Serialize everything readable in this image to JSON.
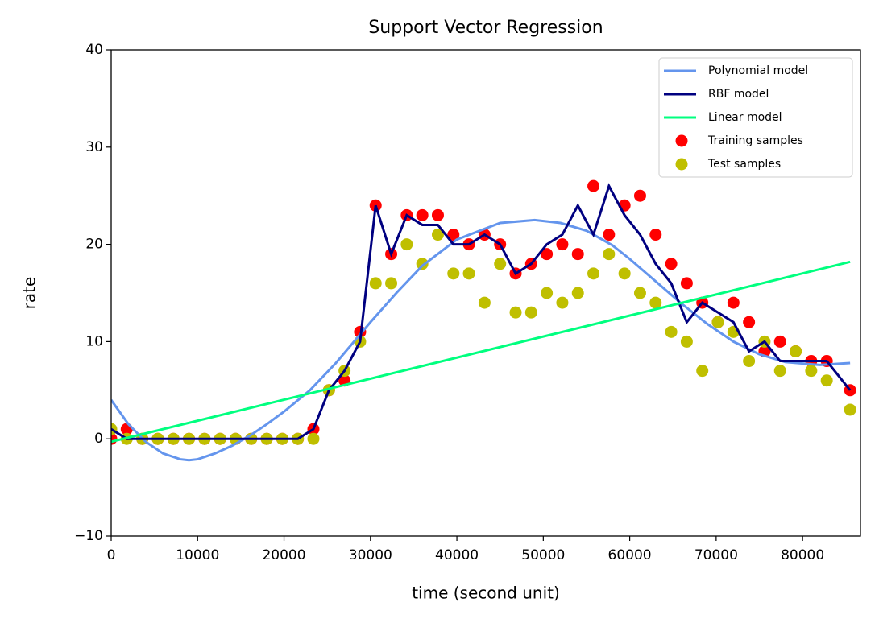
{
  "chart_data": {
    "type": "line",
    "title": "Support Vector Regression",
    "x_label": "time (second unit)",
    "y_label": "rate",
    "xlim": [
      0,
      86700
    ],
    "ylim": [
      -10,
      40
    ],
    "xticks": [
      0,
      10000,
      20000,
      30000,
      40000,
      50000,
      60000,
      70000,
      80000
    ],
    "yticks": [
      {
        "value": -10,
        "label": "−10"
      },
      0,
      10,
      20,
      30,
      40
    ],
    "legend": "upper right",
    "series": [
      {
        "name": "Polynomial model",
        "type": "line",
        "color": "#6495ed",
        "x": [
          0,
          2000,
          4000,
          6000,
          8000,
          9000,
          10000,
          12000,
          14000,
          16000,
          18000,
          20000,
          23000,
          26000,
          30000,
          33000,
          36000,
          40000,
          45000,
          49000,
          52000,
          55000,
          58000,
          60000,
          63000,
          66000,
          69000,
          72000,
          75000,
          78000,
          82000,
          85500
        ],
        "values": [
          4,
          1.5,
          -0.3,
          -1.5,
          -2.1,
          -2.2,
          -2.1,
          -1.5,
          -0.7,
          0.3,
          1.5,
          2.8,
          5,
          7.8,
          12,
          15,
          17.8,
          20.5,
          22.2,
          22.5,
          22.2,
          21.4,
          19.9,
          18.5,
          16.2,
          13.9,
          11.8,
          10,
          8.7,
          7.9,
          7.6,
          7.8
        ]
      },
      {
        "name": "RBF model",
        "type": "line",
        "color": "#000080",
        "x": [
          0,
          1800,
          3600,
          5400,
          7200,
          9000,
          10800,
          12600,
          14400,
          16200,
          18000,
          19800,
          21600,
          23400,
          25200,
          27000,
          28800,
          30600,
          32400,
          34200,
          36000,
          37800,
          39600,
          41400,
          43200,
          45000,
          46800,
          48600,
          50400,
          52200,
          54000,
          55800,
          57600,
          59400,
          61200,
          63000,
          64800,
          66600,
          68400,
          70200,
          72000,
          73800,
          75600,
          77400,
          79200,
          81000,
          82800,
          85500
        ],
        "values": [
          1,
          0,
          0,
          0,
          0,
          0,
          0,
          0,
          0,
          0,
          0,
          0,
          0,
          1,
          5,
          7,
          10,
          24,
          19,
          23,
          22,
          22,
          20,
          20,
          21,
          20,
          17,
          18,
          20,
          21,
          24,
          21,
          26,
          23,
          21,
          18,
          16,
          12,
          14,
          13,
          12,
          9,
          10,
          8,
          8,
          8,
          8,
          5
        ]
      },
      {
        "name": "Linear model",
        "type": "line",
        "color": "#00ff7f",
        "x": [
          0,
          85500
        ],
        "values": [
          -0.3,
          18.2
        ]
      },
      {
        "name": "Training samples",
        "type": "scatter",
        "color": "#ff0000",
        "x": [
          0,
          1800,
          3600,
          5400,
          7200,
          9000,
          10800,
          12600,
          14400,
          16200,
          18000,
          19800,
          21600,
          23400,
          25200,
          27000,
          28800,
          30600,
          32400,
          34200,
          36000,
          37800,
          39600,
          41400,
          43200,
          45000,
          46800,
          48600,
          50400,
          52200,
          54000,
          55800,
          57600,
          59400,
          61200,
          63000,
          64800,
          66600,
          68400,
          70200,
          72000,
          73800,
          75600,
          77400,
          79200,
          81000,
          82800,
          85500
        ],
        "values": [
          0,
          1,
          0,
          0,
          0,
          0,
          0,
          0,
          0,
          0,
          0,
          0,
          0,
          1,
          5,
          6,
          11,
          24,
          19,
          23,
          23,
          23,
          21,
          20,
          21,
          20,
          17,
          18,
          19,
          20,
          19,
          26,
          21,
          24,
          25,
          21,
          18,
          16,
          14,
          12,
          14,
          12,
          9,
          10,
          9,
          8,
          8,
          5
        ]
      },
      {
        "name": "Test samples",
        "type": "scatter",
        "color": "#bfbf00",
        "x": [
          0,
          1800,
          3600,
          5400,
          7200,
          9000,
          10800,
          12600,
          14400,
          16200,
          18000,
          19800,
          21600,
          23400,
          25200,
          27000,
          28800,
          30600,
          32400,
          34200,
          36000,
          37800,
          39600,
          41400,
          43200,
          45000,
          46800,
          48600,
          50400,
          52200,
          54000,
          55800,
          57600,
          59400,
          61200,
          63000,
          64800,
          66600,
          68400,
          70200,
          72000,
          73800,
          75600,
          77400,
          79200,
          81000,
          82800,
          85500
        ],
        "values": [
          1,
          0,
          0,
          0,
          0,
          0,
          0,
          0,
          0,
          0,
          0,
          0,
          0,
          0,
          5,
          7,
          10,
          16,
          16,
          20,
          18,
          21,
          17,
          17,
          14,
          18,
          13,
          13,
          15,
          14,
          15,
          17,
          19,
          17,
          15,
          14,
          11,
          10,
          7,
          12,
          11,
          8,
          10,
          7,
          9,
          7,
          6,
          3
        ]
      }
    ]
  }
}
